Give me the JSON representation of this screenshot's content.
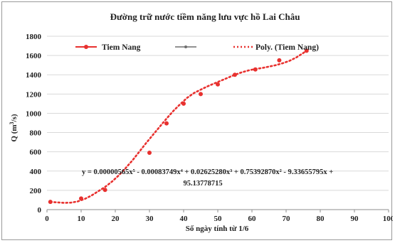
{
  "chart_data": {
    "type": "scatter",
    "title": "Đường trữ nước tiềm năng lưu vực hồ Lai Châu",
    "xlabel": "Số ngày tính từ 1/6",
    "ylabel_main": "Q (m",
    "ylabel_sup": "3",
    "ylabel_tail": "/s)",
    "xlim": [
      0,
      100
    ],
    "ylim": [
      0,
      1800
    ],
    "x_ticks": [
      "0",
      "10",
      "20",
      "30",
      "40",
      "50",
      "60",
      "70",
      "80",
      "90",
      "100"
    ],
    "y_ticks": [
      "0",
      "200",
      "400",
      "600",
      "800",
      "1000",
      "1200",
      "1400",
      "1600",
      "1800"
    ],
    "grid": "horizontal",
    "legend_position": "top",
    "series": [
      {
        "name": "Tiem Nang",
        "color": "#e8312f",
        "marker": "circle",
        "points": [
          [
            1,
            80
          ],
          [
            10,
            115
          ],
          [
            17,
            205
          ],
          [
            30,
            590
          ],
          [
            35,
            895
          ],
          [
            40,
            1100
          ],
          [
            45,
            1200
          ],
          [
            50,
            1300
          ],
          [
            55,
            1400
          ],
          [
            61,
            1455
          ],
          [
            68,
            1550
          ],
          [
            76,
            1650
          ]
        ]
      },
      {
        "name": "",
        "color": "#6e6e6e",
        "marker": "line"
      },
      {
        "name": "Poly. (Tiem Nang)",
        "color": "#e8312f",
        "style": "dotted",
        "curve": [
          [
            1,
            80
          ],
          [
            3,
            75
          ],
          [
            5,
            70
          ],
          [
            7,
            72
          ],
          [
            9,
            85
          ],
          [
            11,
            110
          ],
          [
            13,
            145
          ],
          [
            15,
            190
          ],
          [
            17,
            235
          ],
          [
            19,
            290
          ],
          [
            21,
            355
          ],
          [
            23,
            430
          ],
          [
            25,
            510
          ],
          [
            27,
            600
          ],
          [
            29,
            690
          ],
          [
            31,
            775
          ],
          [
            33,
            860
          ],
          [
            35,
            945
          ],
          [
            37,
            1025
          ],
          [
            39,
            1095
          ],
          [
            41,
            1160
          ],
          [
            43,
            1210
          ],
          [
            45,
            1245
          ],
          [
            47,
            1280
          ],
          [
            49,
            1310
          ],
          [
            51,
            1340
          ],
          [
            53,
            1370
          ],
          [
            55,
            1400
          ],
          [
            57,
            1425
          ],
          [
            59,
            1445
          ],
          [
            61,
            1460
          ],
          [
            63,
            1470
          ],
          [
            65,
            1485
          ],
          [
            67,
            1500
          ],
          [
            69,
            1520
          ],
          [
            71,
            1545
          ],
          [
            73,
            1580
          ],
          [
            75,
            1625
          ],
          [
            76,
            1650
          ]
        ]
      }
    ],
    "annotation_line1": "y = 0.00000565x⁵ - 0.00083749x⁴ + 0.02625280x³ + 0.75392870x² - 9.33655795x +",
    "annotation_line2": "95.13778715"
  }
}
